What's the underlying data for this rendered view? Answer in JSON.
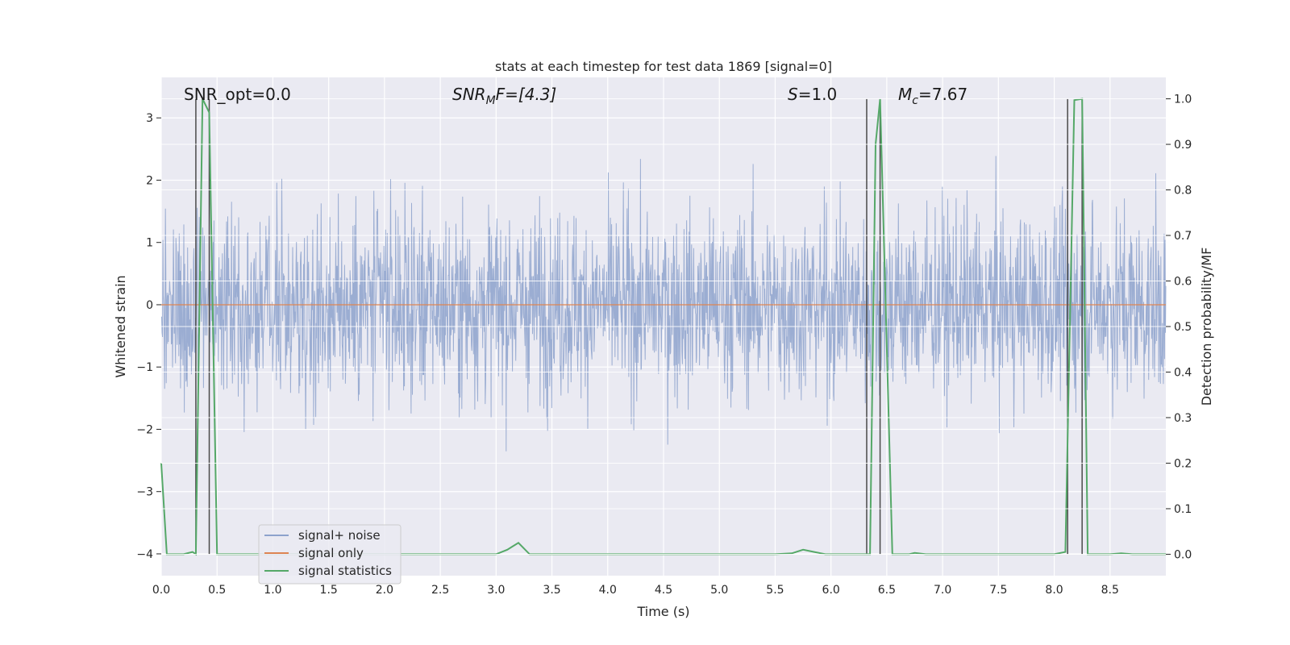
{
  "chart_data": {
    "type": "line",
    "title": "stats at each timestep for test data 1869 [signal=0]",
    "xlabel": "Time (s)",
    "ylabel_left": "Whitened strain",
    "ylabel_right": "Detection probability/MF",
    "xlim": [
      0.0,
      9.0
    ],
    "ylim_left": [
      -4.35,
      3.65
    ],
    "ylim_right": [
      -0.047,
      1.047
    ],
    "x_ticks": [
      0.0,
      0.5,
      1.0,
      1.5,
      2.0,
      2.5,
      3.0,
      3.5,
      4.0,
      4.5,
      5.0,
      5.5,
      6.0,
      6.5,
      7.0,
      7.5,
      8.0,
      8.5
    ],
    "y_ticks_left": [
      3,
      2,
      1,
      0,
      -1,
      -2,
      -3,
      -4
    ],
    "y_ticks_right": [
      1.0,
      0.9,
      0.8,
      0.7,
      0.6,
      0.5,
      0.4,
      0.3,
      0.2,
      0.1,
      0.0
    ],
    "grid": true,
    "legend_position": "lower-left",
    "annotations": {
      "snr_opt": "SNR_opt=0.0",
      "snr_mf_sym": "SNR",
      "snr_mf_sub": "M",
      "snr_mf_rest": "F=[4.3]",
      "s_sym": "S",
      "s_rest": "=1.0",
      "mc_sym": "M",
      "mc_sub": "c",
      "mc_rest": "=7.67"
    },
    "series": [
      {
        "name": "signal+ noise",
        "color": "#8da2cc",
        "axis": "left",
        "description_values": "whitened noise, approx range [-3.6, 3.3]"
      },
      {
        "name": "signal only",
        "color": "#dd8452",
        "axis": "left",
        "values_constant": 0
      },
      {
        "name": "signal statistics",
        "color": "#55a868",
        "axis": "right",
        "x": [
          0.0,
          0.05,
          0.1,
          0.2,
          0.28,
          0.31,
          0.37,
          0.43,
          0.5,
          1.0,
          2.0,
          3.0,
          3.1,
          3.2,
          3.3,
          3.5,
          4.0,
          5.0,
          5.5,
          5.65,
          5.75,
          5.85,
          5.95,
          6.1,
          6.3,
          6.35,
          6.4,
          6.44,
          6.55,
          6.6,
          6.7,
          6.75,
          6.85,
          6.95,
          7.5,
          8.0,
          8.1,
          8.18,
          8.25,
          8.3,
          8.36,
          8.4,
          8.5,
          8.6,
          8.7,
          9.0
        ],
        "values": [
          0.2,
          0.0,
          0.0,
          0.0,
          0.005,
          0.0,
          1.0,
          0.97,
          0.0,
          0.0,
          0.0,
          0.0,
          0.01,
          0.025,
          0.0,
          0.0,
          0.0,
          0.0,
          0.0,
          0.002,
          0.01,
          0.005,
          0.0,
          0.0,
          0.0,
          0.0,
          0.9,
          1.0,
          0.0,
          0.0,
          0.0,
          0.003,
          0.0,
          0.0,
          0.0,
          0.0,
          0.005,
          0.997,
          1.0,
          0.0,
          0.0,
          0.0,
          0.0,
          0.002,
          0.0,
          0.0
        ]
      }
    ],
    "vertical_markers": {
      "color": "#4a4a4a",
      "x": [
        0.31,
        0.43,
        6.32,
        6.44,
        8.12,
        8.25
      ]
    }
  }
}
